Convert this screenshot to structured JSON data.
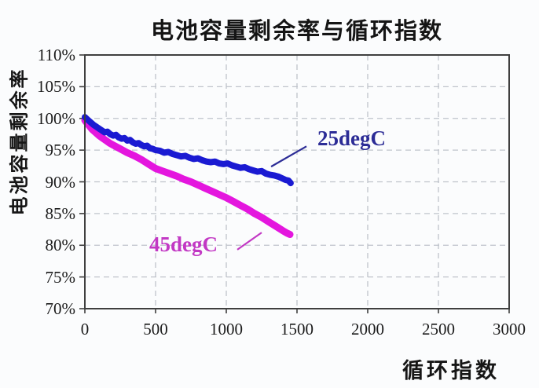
{
  "title": "电池容量剩余率与循环指数",
  "y_axis": {
    "label": "电池容量剩余率",
    "ticks": [
      "110%",
      "105%",
      "100%",
      "95%",
      "90%",
      "85%",
      "80%",
      "75%",
      "70%"
    ]
  },
  "x_axis": {
    "label": "循环指数",
    "ticks": [
      "0",
      "500",
      "1000",
      "1500",
      "2000",
      "2500",
      "3000"
    ]
  },
  "colors": {
    "background": "#fbfcfd",
    "frame": "#3f3f3f",
    "grid": "#bfc3cb",
    "tick_text": "#1b1b1b",
    "series_25degC": "#1a1ad2",
    "series_45degC": "#e416de",
    "label_25degC": "#2c2c96",
    "label_45degC": "#c238c4"
  },
  "chart_data": {
    "type": "line",
    "title": "电池容量剩余率与循环指数",
    "xlabel": "循环指数",
    "ylabel": "电池容量剩余率",
    "xlim": [
      0,
      3000
    ],
    "ylim": [
      70,
      110
    ],
    "x_tick_step": 500,
    "y_tick_step": 5,
    "y_tick_format": "percent",
    "grid": "dashed-gray",
    "legend_position": "inline-annotations",
    "series": [
      {
        "name": "25degC",
        "color": "#1a1ad2",
        "stroke_width": 8,
        "points": [
          [
            0,
            100.2
          ],
          [
            20,
            99.8
          ],
          [
            40,
            99.4
          ],
          [
            60,
            99.0
          ],
          [
            80,
            98.7
          ],
          [
            100,
            98.4
          ],
          [
            120,
            98.1
          ],
          [
            140,
            97.8
          ],
          [
            160,
            97.9
          ],
          [
            180,
            97.5
          ],
          [
            200,
            97.3
          ],
          [
            220,
            97.4
          ],
          [
            240,
            97.0
          ],
          [
            260,
            96.8
          ],
          [
            280,
            96.9
          ],
          [
            300,
            96.5
          ],
          [
            320,
            96.6
          ],
          [
            340,
            96.2
          ],
          [
            360,
            96.0
          ],
          [
            380,
            96.1
          ],
          [
            400,
            95.8
          ],
          [
            420,
            95.6
          ],
          [
            440,
            95.7
          ],
          [
            460,
            95.3
          ],
          [
            480,
            95.2
          ],
          [
            500,
            95.0
          ],
          [
            530,
            94.9
          ],
          [
            560,
            94.6
          ],
          [
            590,
            94.7
          ],
          [
            620,
            94.4
          ],
          [
            650,
            94.2
          ],
          [
            680,
            94.0
          ],
          [
            710,
            94.1
          ],
          [
            740,
            93.8
          ],
          [
            770,
            93.6
          ],
          [
            800,
            93.7
          ],
          [
            830,
            93.4
          ],
          [
            860,
            93.2
          ],
          [
            890,
            93.1
          ],
          [
            920,
            93.2
          ],
          [
            950,
            92.9
          ],
          [
            980,
            92.8
          ],
          [
            1010,
            92.9
          ],
          [
            1040,
            92.6
          ],
          [
            1070,
            92.4
          ],
          [
            1100,
            92.2
          ],
          [
            1130,
            92.3
          ],
          [
            1160,
            92.0
          ],
          [
            1190,
            91.8
          ],
          [
            1220,
            91.6
          ],
          [
            1250,
            91.7
          ],
          [
            1280,
            91.3
          ],
          [
            1310,
            91.1
          ],
          [
            1340,
            91.0
          ],
          [
            1370,
            90.8
          ],
          [
            1400,
            90.5
          ],
          [
            1420,
            90.3
          ],
          [
            1440,
            90.2
          ],
          [
            1455,
            89.8
          ]
        ]
      },
      {
        "name": "45degC",
        "color": "#e416de",
        "stroke_width": 9,
        "points": [
          [
            0,
            99.7
          ],
          [
            25,
            99.0
          ],
          [
            50,
            98.3
          ],
          [
            75,
            97.8
          ],
          [
            100,
            97.3
          ],
          [
            125,
            96.9
          ],
          [
            150,
            96.5
          ],
          [
            175,
            96.1
          ],
          [
            200,
            95.8
          ],
          [
            250,
            95.2
          ],
          [
            300,
            94.6
          ],
          [
            350,
            94.1
          ],
          [
            400,
            93.5
          ],
          [
            450,
            92.8
          ],
          [
            500,
            92.1
          ],
          [
            550,
            91.7
          ],
          [
            600,
            91.3
          ],
          [
            650,
            90.9
          ],
          [
            700,
            90.4
          ],
          [
            750,
            90.0
          ],
          [
            800,
            89.5
          ],
          [
            850,
            89.0
          ],
          [
            900,
            88.5
          ],
          [
            950,
            88.0
          ],
          [
            1000,
            87.5
          ],
          [
            1050,
            86.9
          ],
          [
            1100,
            86.3
          ],
          [
            1150,
            85.7
          ],
          [
            1200,
            85.0
          ],
          [
            1250,
            84.4
          ],
          [
            1300,
            83.7
          ],
          [
            1350,
            83.0
          ],
          [
            1400,
            82.3
          ],
          [
            1430,
            81.9
          ],
          [
            1450,
            81.7
          ]
        ]
      }
    ],
    "annotations": [
      {
        "text": "25degC",
        "color": "#2c2c96",
        "leader": [
          [
            1317,
            92.4
          ],
          [
            1567,
            95.6
          ]
        ]
      },
      {
        "text": "45degC",
        "color": "#c238c4",
        "leader": [
          [
            1078,
            79.3
          ],
          [
            1250,
            82.0
          ]
        ]
      }
    ]
  }
}
